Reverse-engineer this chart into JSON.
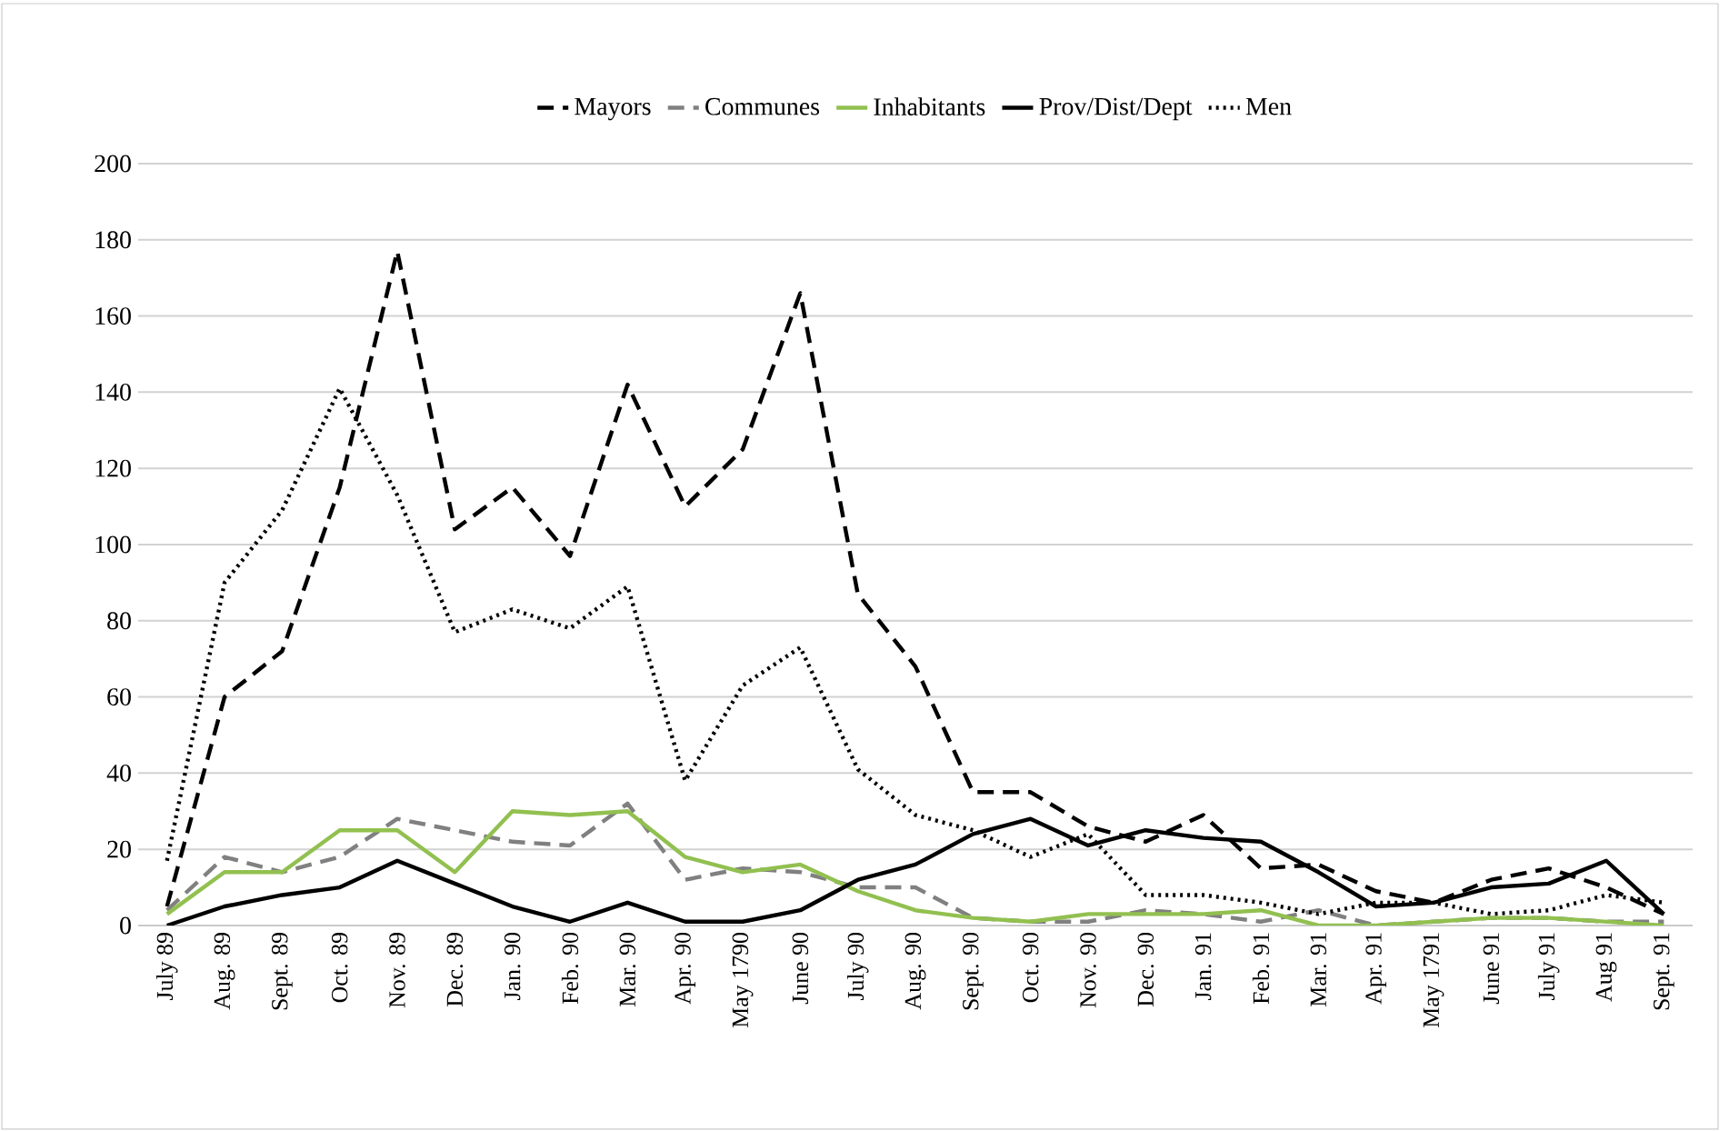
{
  "chart_data": {
    "type": "line",
    "categories": [
      "July 89",
      "Aug. 89",
      "Sept. 89",
      "Oct. 89",
      "Nov. 89",
      "Dec. 89",
      "Jan. 90",
      "Feb. 90",
      "Mar. 90",
      "Apr. 90",
      "May 1790",
      "June 90",
      "July 90",
      "Aug. 90",
      "Sept. 90",
      "Oct. 90",
      "Nov. 90",
      "Dec. 90",
      "Jan. 91",
      "Feb. 91",
      "Mar. 91",
      "Apr. 91",
      "May 1791",
      "June 91",
      "July 91",
      "Aug 91",
      "Sept. 91"
    ],
    "series": [
      {
        "name": "Mayors",
        "color": "#000000",
        "line_style": "dashed",
        "values": [
          5,
          60,
          72,
          115,
          177,
          104,
          115,
          97,
          142,
          110,
          125,
          166,
          87,
          68,
          35,
          35,
          26,
          22,
          29,
          15,
          16,
          9,
          6,
          12,
          15,
          10,
          3
        ]
      },
      {
        "name": "Communes",
        "color": "#808080",
        "line_style": "dashed",
        "values": [
          4,
          18,
          14,
          18,
          28,
          25,
          22,
          21,
          32,
          12,
          15,
          14,
          10,
          10,
          2,
          1,
          1,
          4,
          3,
          1,
          4,
          0,
          1,
          2,
          2,
          1,
          1
        ]
      },
      {
        "name": "Inhabitants",
        "color": "#92c050",
        "line_style": "solid",
        "values": [
          3,
          14,
          14,
          25,
          25,
          14,
          30,
          29,
          30,
          18,
          14,
          16,
          9,
          4,
          2,
          1,
          3,
          3,
          3,
          4,
          0,
          0,
          1,
          2,
          2,
          1,
          0
        ]
      },
      {
        "name": "Prov/Dist/Dept",
        "color": "#000000",
        "line_style": "solid",
        "values": [
          0,
          5,
          8,
          10,
          17,
          11,
          5,
          1,
          6,
          1,
          1,
          4,
          12,
          16,
          24,
          28,
          21,
          25,
          23,
          22,
          14,
          5,
          6,
          10,
          11,
          17,
          3
        ]
      },
      {
        "name": "Men",
        "color": "#000000",
        "line_style": "dotted",
        "values": [
          17,
          90,
          109,
          141,
          113,
          77,
          83,
          78,
          89,
          38,
          63,
          73,
          41,
          29,
          25,
          18,
          24,
          8,
          8,
          6,
          3,
          6,
          6,
          3,
          4,
          8,
          6
        ]
      }
    ],
    "ylim": [
      0,
      200
    ],
    "yticks": [
      0,
      20,
      40,
      60,
      80,
      100,
      120,
      140,
      160,
      180,
      200
    ],
    "grid": "y",
    "legend": "top",
    "marker": "none"
  }
}
